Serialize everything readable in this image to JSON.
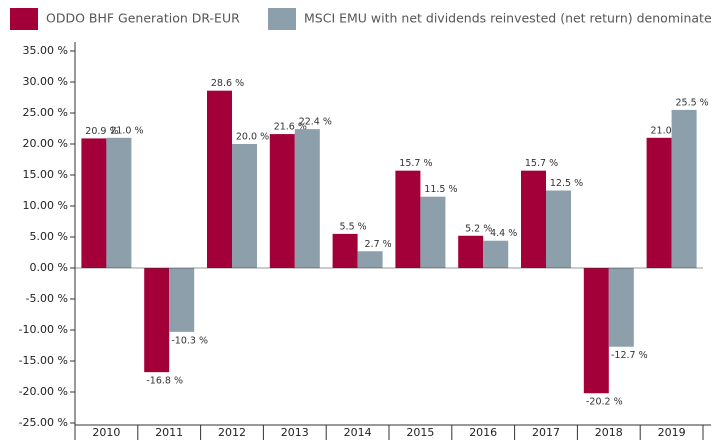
{
  "chart_data": {
    "type": "bar",
    "categories": [
      "2010",
      "2011",
      "2012",
      "2013",
      "2014",
      "2015",
      "2016",
      "2017",
      "2018",
      "2019"
    ],
    "series": [
      {
        "name": "ODDO BHF Generation DR-EUR",
        "color": "#a3003a",
        "values": [
          20.9,
          -16.8,
          28.6,
          21.6,
          5.5,
          15.7,
          5.2,
          15.7,
          -20.2,
          21.0
        ],
        "value_labels": [
          "20.9 %",
          "-16.8 %",
          "28.6 %",
          "21.6 %",
          "5.5 %",
          "15.7 %",
          "5.2 %",
          "15.7 %",
          "-20.2 %",
          "21.0 %"
        ]
      },
      {
        "name": "MSCI EMU with net dividends reinvested (net return) denominated in euro",
        "color": "#8c9fab",
        "values": [
          21.0,
          -10.3,
          20.0,
          22.4,
          2.7,
          11.5,
          4.4,
          12.5,
          -12.7,
          25.5
        ],
        "value_labels": [
          "21.0 %",
          "-10.3 %",
          "20.0 %",
          "22.4 %",
          "2.7 %",
          "11.5 %",
          "4.4 %",
          "12.5 %",
          "-12.7 %",
          "25.5 %"
        ]
      }
    ],
    "ylim": [
      -25,
      35
    ],
    "yticks": [
      {
        "value": 35,
        "label": "35.00 %"
      },
      {
        "value": 30,
        "label": "30.00 %"
      },
      {
        "value": 25,
        "label": "25.00 %"
      },
      {
        "value": 20,
        "label": "20.00 %"
      },
      {
        "value": 15,
        "label": "15.00 %"
      },
      {
        "value": 10,
        "label": "10.00 %"
      },
      {
        "value": 5,
        "label": "5.00 %"
      },
      {
        "value": 0,
        "label": "0.00 %"
      },
      {
        "value": -5,
        "label": "-5.00 %"
      },
      {
        "value": -10,
        "label": "-10.00 %"
      },
      {
        "value": -15,
        "label": "-15.00 %"
      },
      {
        "value": -20,
        "label": "-20.00 %"
      },
      {
        "value": -25,
        "label": "-25.00 %"
      }
    ],
    "grid": false,
    "legend": "top"
  }
}
